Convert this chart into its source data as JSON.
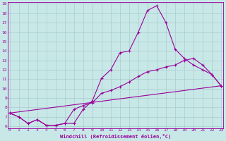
{
  "xlabel": "Windchill (Refroidissement éolien,°C)",
  "xlim": [
    0,
    23
  ],
  "ylim": [
    6,
    19
  ],
  "yticks": [
    6,
    7,
    8,
    9,
    10,
    11,
    12,
    13,
    14,
    15,
    16,
    17,
    18,
    19
  ],
  "xticks": [
    0,
    1,
    2,
    3,
    4,
    5,
    6,
    7,
    8,
    9,
    10,
    11,
    12,
    13,
    14,
    15,
    16,
    17,
    18,
    19,
    20,
    21,
    22,
    23
  ],
  "bg_color": "#c8e8e8",
  "line_color": "#990099",
  "grid_color": "#aacccc",
  "line1_x": [
    0,
    1,
    2,
    3,
    4,
    5,
    6,
    7,
    8,
    9,
    10,
    11,
    12,
    13,
    14,
    15,
    16,
    17,
    18,
    19,
    20,
    21,
    22,
    23
  ],
  "line1_y": [
    7.4,
    7.0,
    6.3,
    6.7,
    6.1,
    6.1,
    6.3,
    6.3,
    7.8,
    8.7,
    11.1,
    12.0,
    13.8,
    14.0,
    16.0,
    18.3,
    18.8,
    17.0,
    14.2,
    13.2,
    12.5,
    12.0,
    11.5,
    10.3
  ],
  "line2_x": [
    0,
    1,
    2,
    3,
    4,
    5,
    6,
    7,
    8,
    9,
    10,
    11,
    12,
    13,
    14,
    15,
    16,
    17,
    18,
    19,
    20,
    21,
    22,
    23
  ],
  "line2_y": [
    7.4,
    7.0,
    6.3,
    6.7,
    6.1,
    6.1,
    6.3,
    7.8,
    8.2,
    8.5,
    9.5,
    9.8,
    10.2,
    10.7,
    11.3,
    11.8,
    12.0,
    12.3,
    12.5,
    13.0,
    13.2,
    12.5,
    11.5,
    10.3
  ],
  "line3_x": [
    0,
    23
  ],
  "line3_y": [
    7.4,
    10.3
  ]
}
